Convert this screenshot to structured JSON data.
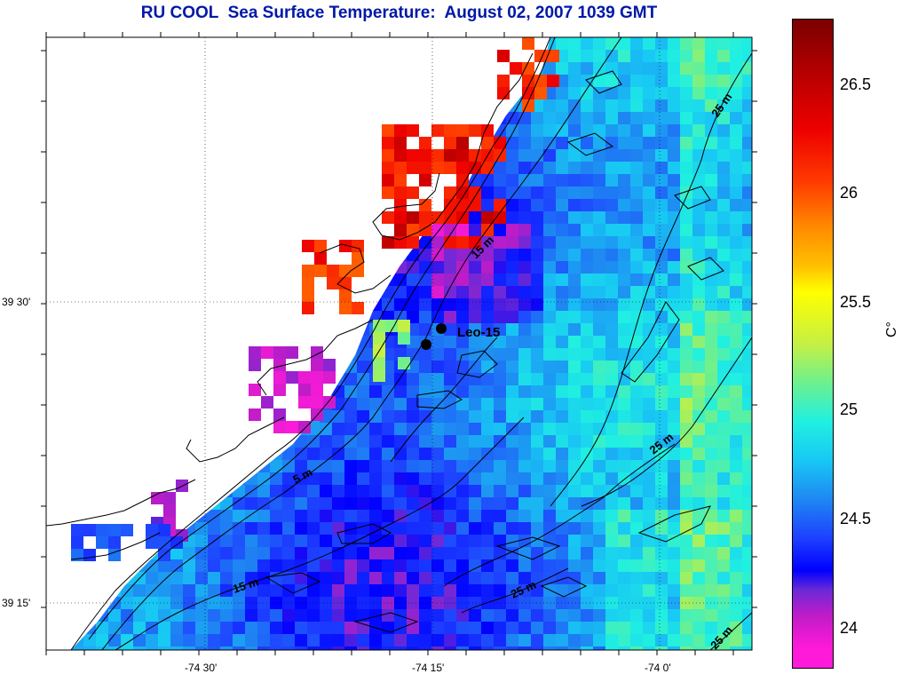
{
  "title": "RU COOL  Sea Surface Temperature:  August 02, 2007 1039 GMT",
  "x_ticks": [
    {
      "label": "-74 30'",
      "value": -74.5
    },
    {
      "label": "-74 15'",
      "value": -74.25
    },
    {
      "label": "-74 0'",
      "value": -74.0
    }
  ],
  "y_ticks": [
    {
      "label": "39 30'",
      "value": 39.5
    },
    {
      "label": "39 15'",
      "value": 39.25
    }
  ],
  "colorbar": {
    "unit": "C°",
    "ticks": [
      "26.5",
      "26",
      "25.5",
      "25",
      "24.5",
      "24"
    ]
  },
  "stations": [
    {
      "name": "Leo-15",
      "label": "Leo-15"
    },
    {
      "name": "station-2",
      "label": ""
    }
  ],
  "contour_labels": [
    "5 m",
    "15 m",
    "15 m",
    "25 m",
    "25 m",
    "25 m",
    "25 m"
  ],
  "colors": {
    "title": "#0018a8",
    "land": "#ffffff",
    "contour": "#000000"
  }
}
